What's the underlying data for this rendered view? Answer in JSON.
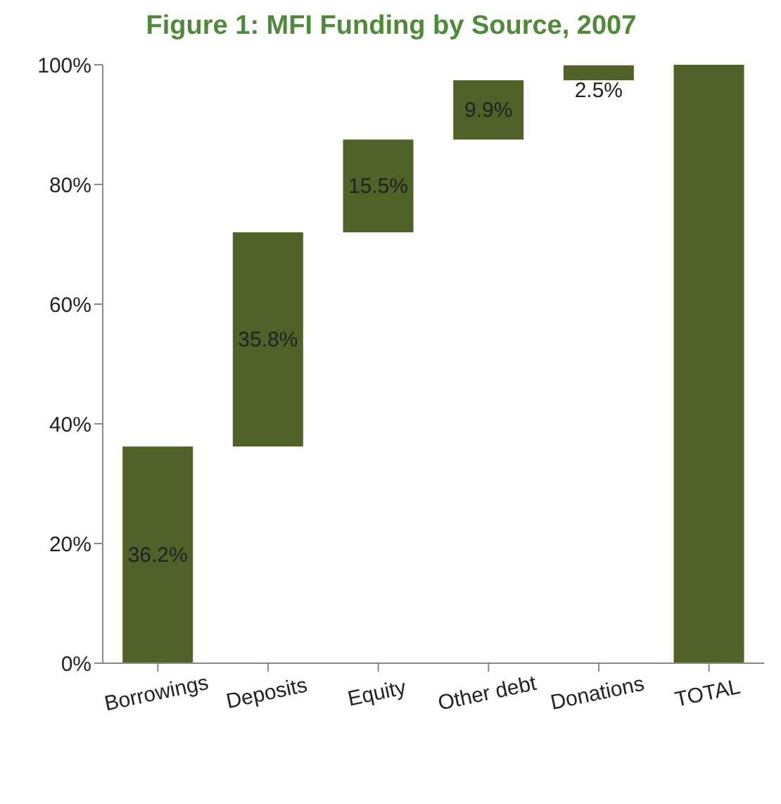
{
  "chart_data": {
    "type": "bar",
    "title": "Figure 1:  MFI Funding by Source, 2007",
    "categories": [
      "Borrowings",
      "Deposits",
      "Equity",
      "Other debt",
      "Donations",
      "TOTAL"
    ],
    "values": [
      36.2,
      35.8,
      15.5,
      9.9,
      2.5,
      100
    ],
    "base": [
      0,
      36.2,
      72,
      87.5,
      97.4,
      0
    ],
    "value_labels": [
      "36.2%",
      "35.8%",
      "15.5%",
      "9.9%",
      "2.5%",
      null
    ],
    "color": "#4f6228",
    "ylim": [
      0,
      100
    ],
    "yticks": [
      {
        "value": 0,
        "label": "0%"
      },
      {
        "value": 20,
        "label": "20%"
      },
      {
        "value": 40,
        "label": "40%"
      },
      {
        "value": 60,
        "label": "60%"
      },
      {
        "value": 80,
        "label": "80%"
      },
      {
        "value": 100,
        "label": "100%"
      }
    ],
    "grid": false,
    "legend": false
  }
}
